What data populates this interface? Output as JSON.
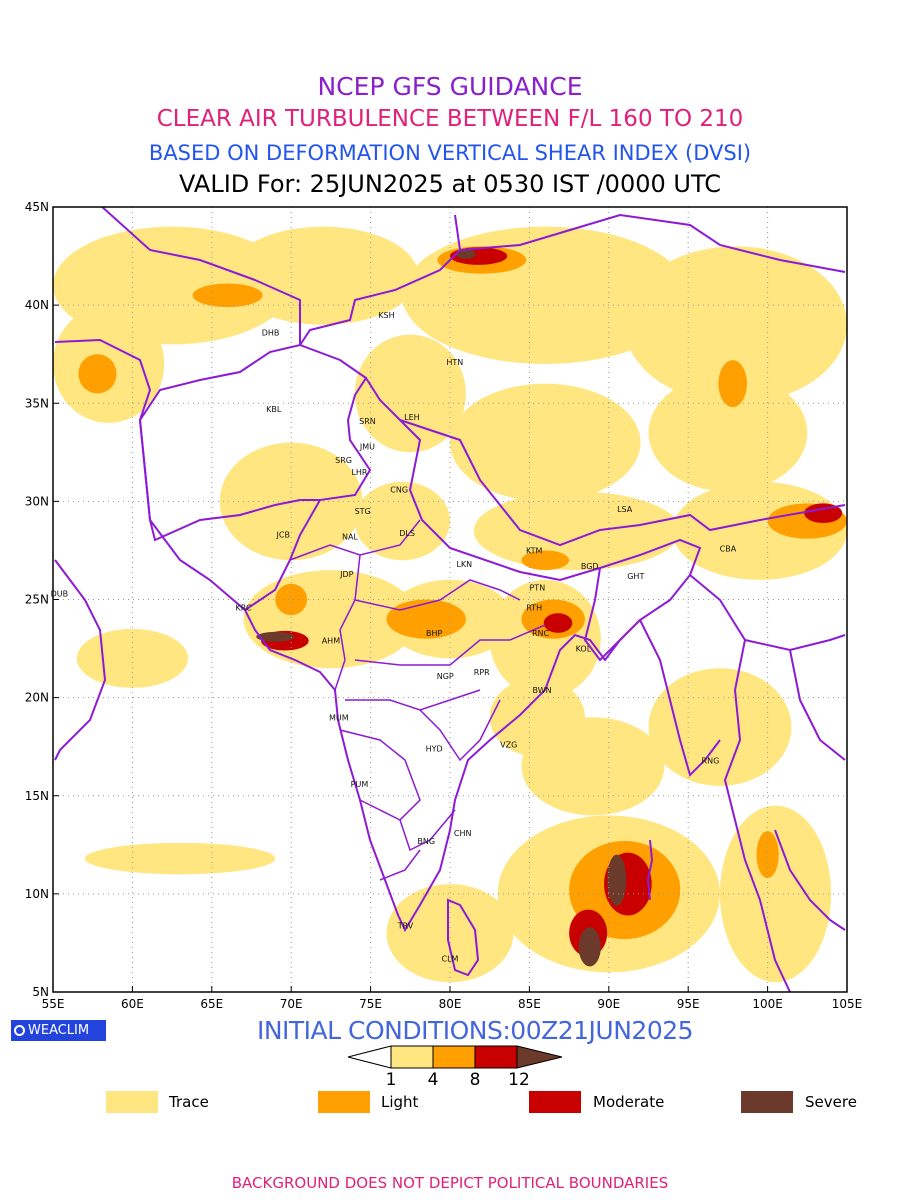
{
  "header": {
    "line1": "NCEP GFS GUIDANCE",
    "line2": "CLEAR AIR TURBULENCE BETWEEN F/L 160 TO 210",
    "line3": "BASED ON DEFORMATION VERTICAL SHEAR INDEX (DVSI)",
    "line4": "VALID For: 25JUN2025 at 0530 IST /0000 UTC"
  },
  "colors": {
    "title1": "#8a1fcc",
    "title2": "#e0207a",
    "title3": "#2255ee",
    "title4": "#000000",
    "trace": "#ffe680",
    "light": "#ffa000",
    "moderate": "#c80000",
    "severe": "#6b3a2a",
    "boundary": "#8c1ad6",
    "initial": "#4466dd",
    "footer": "#e0207a"
  },
  "axes": {
    "lon_ticks": [
      "55E",
      "60E",
      "65E",
      "70E",
      "75E",
      "80E",
      "85E",
      "90E",
      "95E",
      "100E",
      "105E"
    ],
    "lat_ticks": [
      "45N",
      "40N",
      "35N",
      "30N",
      "25N",
      "20N",
      "15N",
      "10N",
      "5N"
    ]
  },
  "cities": [
    {
      "code": "KSH",
      "lon": 76.0,
      "lat": 39.5
    },
    {
      "code": "DHB",
      "lon": 68.7,
      "lat": 38.6
    },
    {
      "code": "HTN",
      "lon": 80.3,
      "lat": 37.1
    },
    {
      "code": "KBL",
      "lon": 68.9,
      "lat": 34.7
    },
    {
      "code": "LEH",
      "lon": 77.6,
      "lat": 34.3
    },
    {
      "code": "SRN",
      "lon": 74.8,
      "lat": 34.1
    },
    {
      "code": "JMU",
      "lon": 74.8,
      "lat": 32.8
    },
    {
      "code": "SRG",
      "lon": 73.3,
      "lat": 32.1
    },
    {
      "code": "LHR",
      "lon": 74.3,
      "lat": 31.5
    },
    {
      "code": "CNG",
      "lon": 76.8,
      "lat": 30.6
    },
    {
      "code": "LSA",
      "lon": 91.0,
      "lat": 29.6
    },
    {
      "code": "STG",
      "lon": 74.5,
      "lat": 29.5
    },
    {
      "code": "JCB",
      "lon": 69.5,
      "lat": 28.3
    },
    {
      "code": "DLS",
      "lon": 77.3,
      "lat": 28.4
    },
    {
      "code": "NAL",
      "lon": 73.7,
      "lat": 28.2
    },
    {
      "code": "CBA",
      "lon": 97.5,
      "lat": 27.6
    },
    {
      "code": "KTM",
      "lon": 85.3,
      "lat": 27.5
    },
    {
      "code": "LKN",
      "lon": 80.9,
      "lat": 26.8
    },
    {
      "code": "BGD",
      "lon": 88.8,
      "lat": 26.7
    },
    {
      "code": "GHT",
      "lon": 91.7,
      "lat": 26.2
    },
    {
      "code": "JDP",
      "lon": 73.5,
      "lat": 26.3
    },
    {
      "code": "PTN",
      "lon": 85.5,
      "lat": 25.6
    },
    {
      "code": "DUB",
      "lon": 55.4,
      "lat": 25.3
    },
    {
      "code": "RTH",
      "lon": 85.3,
      "lat": 24.6
    },
    {
      "code": "KRC",
      "lon": 67.0,
      "lat": 24.6
    },
    {
      "code": "BHP",
      "lon": 79.0,
      "lat": 23.3
    },
    {
      "code": "RNC",
      "lon": 85.7,
      "lat": 23.3
    },
    {
      "code": "AHM",
      "lon": 72.5,
      "lat": 22.9
    },
    {
      "code": "KOL",
      "lon": 88.4,
      "lat": 22.5
    },
    {
      "code": "RPR",
      "lon": 82.0,
      "lat": 21.3
    },
    {
      "code": "NGP",
      "lon": 79.7,
      "lat": 21.1
    },
    {
      "code": "BWN",
      "lon": 85.8,
      "lat": 20.4
    },
    {
      "code": "MUM",
      "lon": 73.0,
      "lat": 19.0
    },
    {
      "code": "HYD",
      "lon": 79.0,
      "lat": 17.4
    },
    {
      "code": "VZG",
      "lon": 83.7,
      "lat": 17.6
    },
    {
      "code": "RNG",
      "lon": 96.4,
      "lat": 16.8
    },
    {
      "code": "PUM",
      "lon": 74.3,
      "lat": 15.6
    },
    {
      "code": "CHN",
      "lon": 80.8,
      "lat": 13.1
    },
    {
      "code": "BNG",
      "lon": 78.5,
      "lat": 12.7
    },
    {
      "code": "TRV",
      "lon": 77.2,
      "lat": 8.4
    },
    {
      "code": "CLM",
      "lon": 80.0,
      "lat": 6.7
    }
  ],
  "turbulence_patches": [
    {
      "level": "trace",
      "lon": 62.5,
      "lat": 41.0,
      "rlon": 7.5,
      "rlat": 3.0
    },
    {
      "level": "trace",
      "lon": 72.0,
      "lat": 41.5,
      "rlon": 6.0,
      "rlat": 2.5
    },
    {
      "level": "trace",
      "lon": 86.0,
      "lat": 40.5,
      "rlon": 9.0,
      "rlat": 3.5
    },
    {
      "level": "trace",
      "lon": 98.0,
      "lat": 39.0,
      "rlon": 7.0,
      "rlat": 4.0
    },
    {
      "level": "trace",
      "lon": 58.5,
      "lat": 37.0,
      "rlon": 3.5,
      "rlat": 3.0
    },
    {
      "level": "trace",
      "lon": 77.5,
      "lat": 35.5,
      "rlon": 3.5,
      "rlat": 3.0
    },
    {
      "level": "trace",
      "lon": 86.0,
      "lat": 33.0,
      "rlon": 6.0,
      "rlat": 3.0
    },
    {
      "level": "trace",
      "lon": 97.5,
      "lat": 33.5,
      "rlon": 5.0,
      "rlat": 3.0
    },
    {
      "level": "trace",
      "lon": 70.0,
      "lat": 30.0,
      "rlon": 4.5,
      "rlat": 3.0
    },
    {
      "level": "trace",
      "lon": 77.0,
      "lat": 29.0,
      "rlon": 3.0,
      "rlat": 2.0
    },
    {
      "level": "trace",
      "lon": 88.0,
      "lat": 28.5,
      "rlon": 6.5,
      "rlat": 2.0
    },
    {
      "level": "trace",
      "lon": 99.5,
      "lat": 28.5,
      "rlon": 5.5,
      "rlat": 2.5
    },
    {
      "level": "trace",
      "lon": 72.5,
      "lat": 24.0,
      "rlon": 5.5,
      "rlat": 2.5
    },
    {
      "level": "trace",
      "lon": 80.0,
      "lat": 24.0,
      "rlon": 4.0,
      "rlat": 2.0
    },
    {
      "level": "trace",
      "lon": 86.0,
      "lat": 23.0,
      "rlon": 3.5,
      "rlat": 3.0
    },
    {
      "level": "trace",
      "lon": 60.0,
      "lat": 22.0,
      "rlon": 3.5,
      "rlat": 1.5
    },
    {
      "level": "trace",
      "lon": 85.5,
      "lat": 19.0,
      "rlon": 3.0,
      "rlat": 2.0
    },
    {
      "level": "trace",
      "lon": 97.0,
      "lat": 18.5,
      "rlon": 4.5,
      "rlat": 3.0
    },
    {
      "level": "trace",
      "lon": 89.0,
      "lat": 16.5,
      "rlon": 4.5,
      "rlat": 2.5
    },
    {
      "level": "trace",
      "lon": 63.0,
      "lat": 11.8,
      "rlon": 6.0,
      "rlat": 0.8
    },
    {
      "level": "trace",
      "lon": 90.0,
      "lat": 10.0,
      "rlon": 7.0,
      "rlat": 4.0
    },
    {
      "level": "trace",
      "lon": 100.5,
      "lat": 10.0,
      "rlon": 3.5,
      "rlat": 4.5
    },
    {
      "level": "trace",
      "lon": 80.0,
      "lat": 8.0,
      "rlon": 4.0,
      "rlat": 2.5
    },
    {
      "level": "light",
      "lon": 66.0,
      "lat": 40.5,
      "rlon": 2.2,
      "rlat": 0.6
    },
    {
      "level": "light",
      "lon": 57.8,
      "lat": 36.5,
      "rlon": 1.2,
      "rlat": 1.0
    },
    {
      "level": "light",
      "lon": 97.8,
      "lat": 36.0,
      "rlon": 0.9,
      "rlat": 1.2
    },
    {
      "level": "light",
      "lon": 82.0,
      "lat": 42.3,
      "rlon": 2.8,
      "rlat": 0.7
    },
    {
      "level": "light",
      "lon": 70.0,
      "lat": 25.0,
      "rlon": 1.0,
      "rlat": 0.8
    },
    {
      "level": "light",
      "lon": 78.5,
      "lat": 24.0,
      "rlon": 2.5,
      "rlat": 1.0
    },
    {
      "level": "light",
      "lon": 86.5,
      "lat": 24.0,
      "rlon": 2.0,
      "rlat": 1.0
    },
    {
      "level": "light",
      "lon": 86.0,
      "lat": 27.0,
      "rlon": 1.5,
      "rlat": 0.5
    },
    {
      "level": "light",
      "lon": 102.5,
      "lat": 29.0,
      "rlon": 2.5,
      "rlat": 0.9
    },
    {
      "level": "light",
      "lon": 91.0,
      "lat": 10.2,
      "rlon": 3.5,
      "rlat": 2.5
    },
    {
      "level": "light",
      "lon": 100.0,
      "lat": 12.0,
      "rlon": 0.7,
      "rlat": 1.2
    },
    {
      "level": "moderate",
      "lon": 81.8,
      "lat": 42.5,
      "rlon": 1.8,
      "rlat": 0.45
    },
    {
      "level": "moderate",
      "lon": 69.6,
      "lat": 22.9,
      "rlon": 1.5,
      "rlat": 0.5
    },
    {
      "level": "moderate",
      "lon": 86.8,
      "lat": 23.8,
      "rlon": 0.9,
      "rlat": 0.5
    },
    {
      "level": "moderate",
      "lon": 103.5,
      "lat": 29.4,
      "rlon": 1.2,
      "rlat": 0.5
    },
    {
      "level": "moderate",
      "lon": 91.2,
      "lat": 10.5,
      "rlon": 1.5,
      "rlat": 1.6
    },
    {
      "level": "moderate",
      "lon": 88.7,
      "lat": 8.0,
      "rlon": 1.2,
      "rlat": 1.2
    },
    {
      "level": "severe",
      "lon": 69.0,
      "lat": 23.1,
      "rlon": 1.2,
      "rlat": 0.25
    },
    {
      "level": "severe",
      "lon": 81.0,
      "lat": 42.6,
      "rlon": 0.6,
      "rlat": 0.25
    },
    {
      "level": "severe",
      "lon": 90.5,
      "lat": 10.7,
      "rlon": 0.6,
      "rlat": 1.3
    },
    {
      "level": "severe",
      "lon": 88.8,
      "lat": 7.3,
      "rlon": 0.7,
      "rlat": 1.0
    }
  ],
  "colorbar": {
    "ticks": [
      "1",
      "4",
      "8",
      "12"
    ]
  },
  "legend": [
    {
      "label": "Trace",
      "color": "#ffe680"
    },
    {
      "label": "Light",
      "color": "#ffa000"
    },
    {
      "label": "Moderate",
      "color": "#c80000"
    },
    {
      "label": "Severe",
      "color": "#6b3a2a"
    }
  ],
  "badge": "WEACLIM",
  "initial_conditions": "INITIAL CONDITIONS:00Z21JUN2025",
  "footer": "BACKGROUND DOES NOT DEPICT POLITICAL BOUNDARIES"
}
